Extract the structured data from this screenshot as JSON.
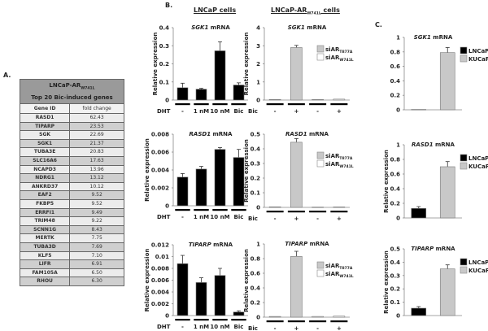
{
  "panels": {
    "a": "A.",
    "b": "B.",
    "c": "C."
  },
  "headings": {
    "lncap": "LNCaP cells",
    "arw_prefix": "LNCaP-AR",
    "arw_sub": "W741L",
    "arw_suffix": " cells"
  },
  "table": {
    "title_prefix": "LNCaP-AR",
    "title_sub": "W741L",
    "subtitle": "Top 20 Bic-induced genes",
    "columns": [
      "Gene ID",
      "fold change"
    ],
    "rows": [
      [
        "RASD1",
        "62.43"
      ],
      [
        "TIPARP",
        "23.53"
      ],
      [
        "SGK",
        "22.69"
      ],
      [
        "SGK1",
        "21.37"
      ],
      [
        "TUBA3E",
        "20.83"
      ],
      [
        "SLC16A6",
        "17.63"
      ],
      [
        "NCAPD3",
        "13.96"
      ],
      [
        "NDRG1",
        "13.12"
      ],
      [
        "ANKRD37",
        "10.12"
      ],
      [
        "EAF2",
        "9.52"
      ],
      [
        "FKBP5",
        "9.52"
      ],
      [
        "ERRFI1",
        "9.49"
      ],
      [
        "TRIM48",
        "9.22"
      ],
      [
        "SCNN1G",
        "8.43"
      ],
      [
        "MERTK",
        "7.75"
      ],
      [
        "TUBA3D",
        "7.69"
      ],
      [
        "KLF5",
        "7.10"
      ],
      [
        "LIFR",
        "6.91"
      ],
      [
        "FAM105A",
        "6.50"
      ],
      [
        "RHOU",
        "6.30"
      ]
    ]
  },
  "chart_data": [
    {
      "id": "b1",
      "type": "bar",
      "gene": "SGK1",
      "title_suffix": " mRNA",
      "ylabel": "Relative expression",
      "ylim": [
        0,
        0.4
      ],
      "yticks": [
        "0",
        "0.1",
        "0.2",
        "0.3",
        "0.4"
      ],
      "xlabel": "DHT",
      "categories": [
        "-",
        "1 nM",
        "10 nM",
        "Bic"
      ],
      "values": [
        0.068,
        0.06,
        0.272,
        0.083
      ],
      "errors": [
        0.025,
        0.005,
        0.05,
        0.012
      ],
      "colors": [
        "#000000",
        "#000000",
        "#000000",
        "#000000"
      ]
    },
    {
      "id": "b2",
      "type": "bar",
      "gene": "RASD1",
      "title_suffix": " mRNA",
      "ylabel": "Relative expression",
      "ylim": [
        0,
        0.008
      ],
      "yticks": [
        "0",
        "0.002",
        "0.004",
        "0.006",
        "0.008"
      ],
      "xlabel": "DHT",
      "categories": [
        "-",
        "1 nM",
        "10 nM",
        "Bic"
      ],
      "values": [
        0.0032,
        0.0041,
        0.0063,
        0.0054
      ],
      "errors": [
        0.0004,
        0.0003,
        0.0002,
        0.0009
      ],
      "colors": [
        "#000000",
        "#000000",
        "#000000",
        "#000000"
      ]
    },
    {
      "id": "b3",
      "type": "bar",
      "gene": "TIPARP",
      "title_suffix": " mRNA",
      "ylabel": "Relative expression",
      "ylim": [
        0,
        0.012
      ],
      "yticks": [
        "0",
        "0.002",
        "0.004",
        "0.006",
        "0.008",
        "0.01",
        "0.012"
      ],
      "xlabel": "DHT",
      "categories": [
        "-",
        "1 nM",
        "10 nM",
        "Bic"
      ],
      "values": [
        0.0088,
        0.0056,
        0.0068,
        0.0006
      ],
      "errors": [
        0.0014,
        0.0008,
        0.0012,
        0.0002
      ],
      "colors": [
        "#000000",
        "#000000",
        "#000000",
        "#000000"
      ]
    },
    {
      "id": "m1",
      "type": "bar",
      "gene": "SGK1",
      "title_suffix": " mRNA",
      "ylabel": "Relative expression",
      "ylim": [
        0,
        4
      ],
      "yticks": [
        "0",
        "1",
        "2",
        "3",
        "4"
      ],
      "xlabel": "Bic",
      "categories": [
        "-",
        "+",
        "-",
        "+"
      ],
      "values": [
        0.03,
        2.9,
        0.03,
        0.05
      ],
      "errors": [
        0,
        0.12,
        0,
        0
      ],
      "colors": [
        "#c8c8c8",
        "#c8c8c8",
        "#ffffff",
        "#ffffff"
      ],
      "legend": [
        {
          "name": "siAR",
          "sub": "T877A",
          "color": "#c8c8c8"
        },
        {
          "name": "siAR",
          "sub": "W741L",
          "color": "#ffffff"
        }
      ]
    },
    {
      "id": "m2",
      "type": "bar",
      "gene": "RASD1",
      "title_suffix": " mRNA",
      "ylabel": "Relative expression",
      "ylim": [
        0,
        0.5
      ],
      "yticks": [
        "0",
        "0.1",
        "0.2",
        "0.3",
        "0.4",
        "0.5"
      ],
      "xlabel": "Bic",
      "categories": [
        "-",
        "+",
        "-",
        "+"
      ],
      "values": [
        0.004,
        0.445,
        0.002,
        0.003
      ],
      "errors": [
        0,
        0.025,
        0,
        0
      ],
      "colors": [
        "#c8c8c8",
        "#c8c8c8",
        "#ffffff",
        "#ffffff"
      ],
      "legend": [
        {
          "name": "siAR",
          "sub": "T877A",
          "color": "#c8c8c8"
        },
        {
          "name": "siAR",
          "sub": "W741L",
          "color": "#ffffff"
        }
      ]
    },
    {
      "id": "m3",
      "type": "bar",
      "gene": "TIPARP",
      "title_suffix": " mRNA",
      "ylabel": "Relative expression",
      "ylim": [
        0,
        1
      ],
      "yticks": [
        "0",
        "0.2",
        "0.4",
        "0.6",
        "0.8",
        "1"
      ],
      "xlabel": "Bic",
      "categories": [
        "-",
        "+",
        "-",
        "+"
      ],
      "values": [
        0.01,
        0.83,
        0.01,
        0.015
      ],
      "errors": [
        0,
        0.07,
        0,
        0
      ],
      "colors": [
        "#c8c8c8",
        "#c8c8c8",
        "#ffffff",
        "#ffffff"
      ],
      "legend": [
        {
          "name": "siAR",
          "sub": "T877A",
          "color": "#c8c8c8"
        },
        {
          "name": "siAR",
          "sub": "W741L",
          "color": "#ffffff"
        }
      ]
    },
    {
      "id": "c1",
      "type": "bar",
      "gene": "SGK1",
      "title_suffix": " mRNA",
      "ylabel": "",
      "ylim": [
        0,
        1
      ],
      "yticks": [
        "0",
        "0.2",
        "0.4",
        "0.6",
        "0.8",
        "1"
      ],
      "categories": [
        "LNCaP",
        "KUCaP"
      ],
      "values": [
        0.005,
        0.79
      ],
      "errors": [
        0,
        0.07
      ],
      "colors": [
        "#000000",
        "#c8c8c8"
      ],
      "legend": [
        {
          "name": "LNCaP",
          "color": "#000000"
        },
        {
          "name": "KUCaP",
          "color": "#c8c8c8"
        }
      ]
    },
    {
      "id": "c2",
      "type": "bar",
      "gene": "RASD1",
      "title_suffix": " mRNA",
      "ylabel": "Relative expression",
      "ylim": [
        0,
        1
      ],
      "yticks": [
        "0",
        "0.2",
        "0.4",
        "0.6",
        "0.8",
        "1"
      ],
      "categories": [
        "LNCaP",
        "KUCaP"
      ],
      "values": [
        0.13,
        0.7
      ],
      "errors": [
        0.025,
        0.07
      ],
      "colors": [
        "#000000",
        "#c8c8c8"
      ],
      "legend": [
        {
          "name": "LNCaP",
          "color": "#000000"
        },
        {
          "name": "KUCaP",
          "color": "#c8c8c8"
        }
      ]
    },
    {
      "id": "c3",
      "type": "bar",
      "gene": "TIPARP",
      "title_suffix": " mRNA",
      "ylabel": "Relative expression",
      "ylim": [
        0,
        0.5
      ],
      "yticks": [
        "0",
        "0.1",
        "0.2",
        "0.3",
        "0.4",
        "0.5"
      ],
      "categories": [
        "LNCaP",
        "KUCaP"
      ],
      "values": [
        0.055,
        0.35
      ],
      "errors": [
        0.012,
        0.03
      ],
      "colors": [
        "#000000",
        "#c8c8c8"
      ],
      "legend": [
        {
          "name": "LNCaP",
          "color": "#000000"
        },
        {
          "name": "KUCaP",
          "color": "#c8c8c8"
        }
      ]
    }
  ]
}
